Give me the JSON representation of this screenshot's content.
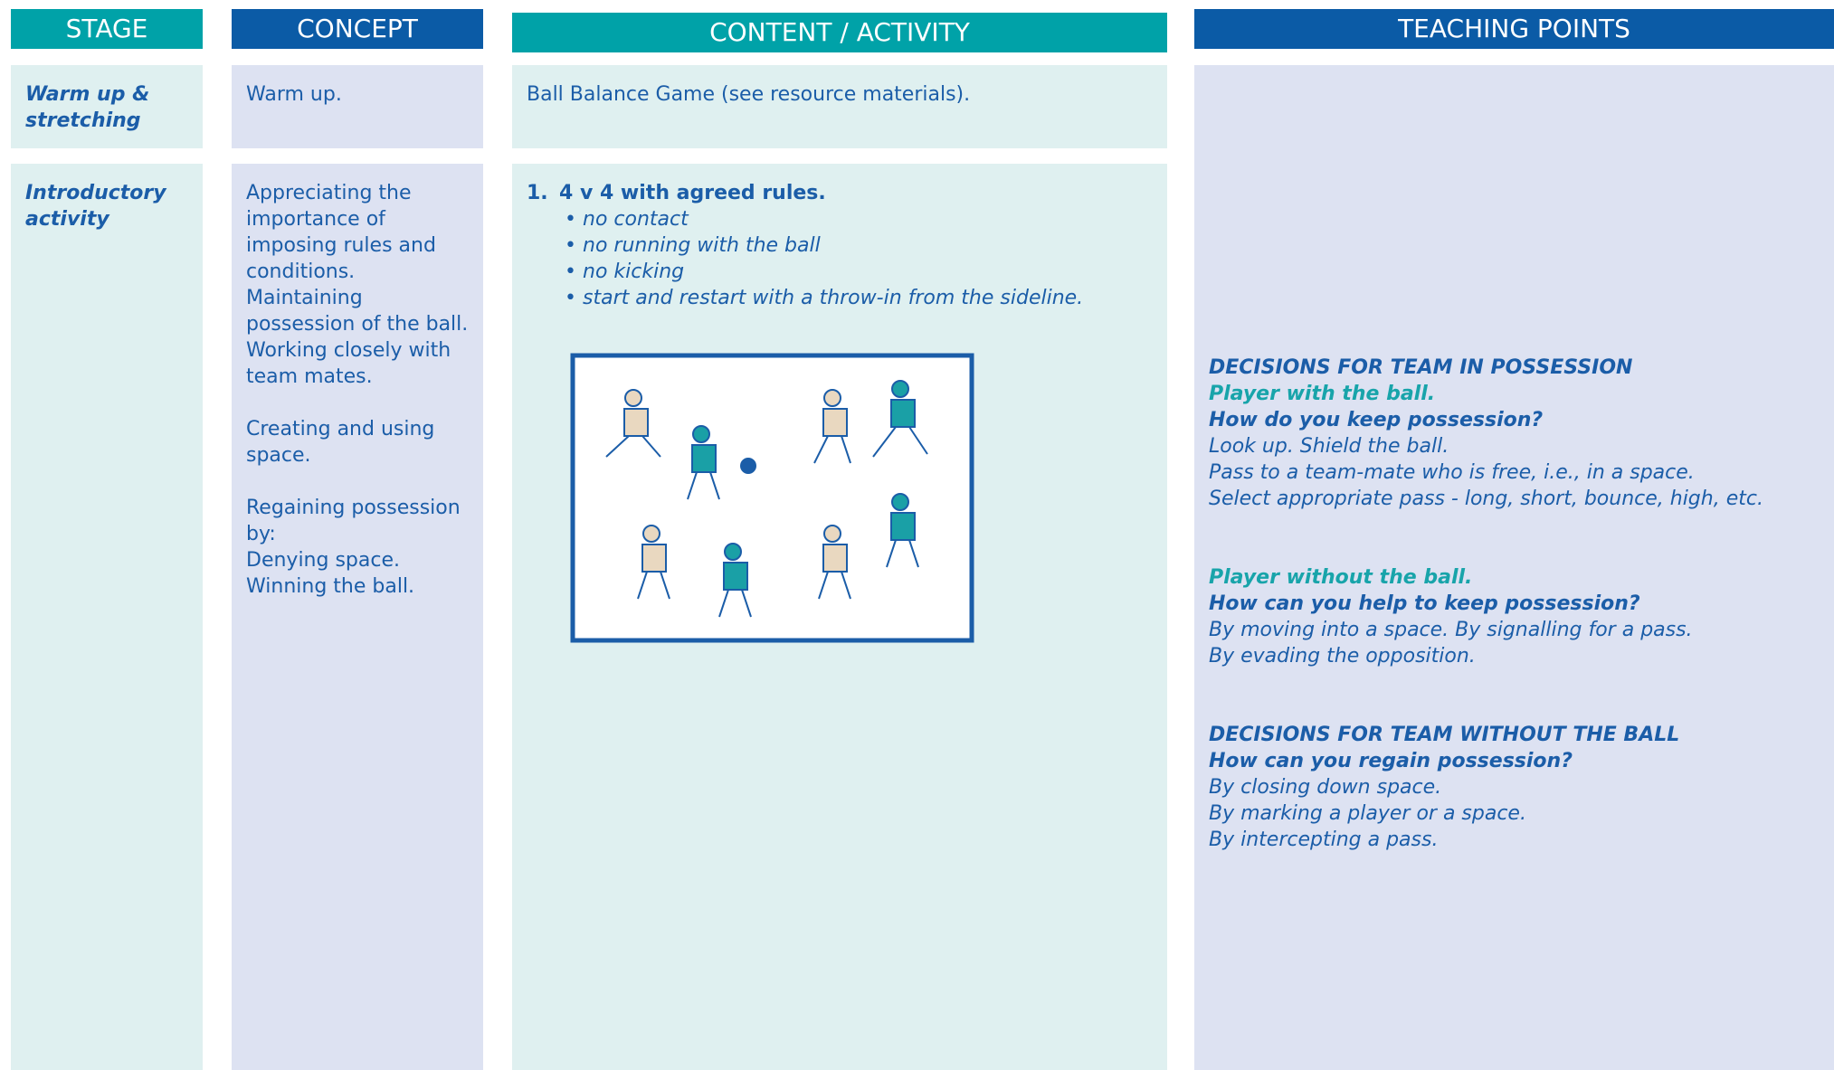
{
  "headers": [
    "STAGE",
    "CONCEPT",
    "CONTENT / ACTIVITY",
    "TEACHING POINTS"
  ],
  "rows": [
    {
      "stage": "Warm up & stretching",
      "concept": [
        [
          "Warm up."
        ]
      ],
      "content": {
        "text": "Ball Balance Game (see resource materials)."
      },
      "teaching": []
    },
    {
      "stage": "Introductory activity",
      "concept": [
        [
          "Appreciating the importance of imposing rules and conditions.",
          "Maintaining possession of the ball. Working closely with team mates."
        ],
        [
          "Creating and using space."
        ],
        [
          "Regaining possession by:",
          "Denying space.",
          "Winning the ball."
        ]
      ],
      "content": {
        "number": "1.",
        "title": "4 v 4 with agreed rules.",
        "bullets": [
          "no contact",
          "no running with the ball",
          "no kicking",
          "start and restart with a throw-in from the sideline."
        ]
      },
      "teaching": [
        {
          "heading": "DECISIONS FOR TEAM IN POSSESSION",
          "subheading": "Player with the ball.",
          "question": "How do you keep possession?",
          "lines": [
            "Look up. Shield the ball.",
            "Pass to a team-mate who is free, i.e., in a space.",
            "Select appropriate pass - long, short, bounce, high, etc."
          ]
        },
        {
          "subheading": "Player without the ball.",
          "question": "How can you help to keep possession?",
          "lines": [
            "By moving into a space. By signalling for a pass.",
            "By evading the opposition."
          ]
        },
        {
          "heading": "DECISIONS FOR TEAM WITHOUT THE BALL",
          "question": "How can you regain possession?",
          "lines": [
            "By closing down space.",
            "By marking a player or a space.",
            "By intercepting a pass."
          ]
        }
      ]
    }
  ]
}
